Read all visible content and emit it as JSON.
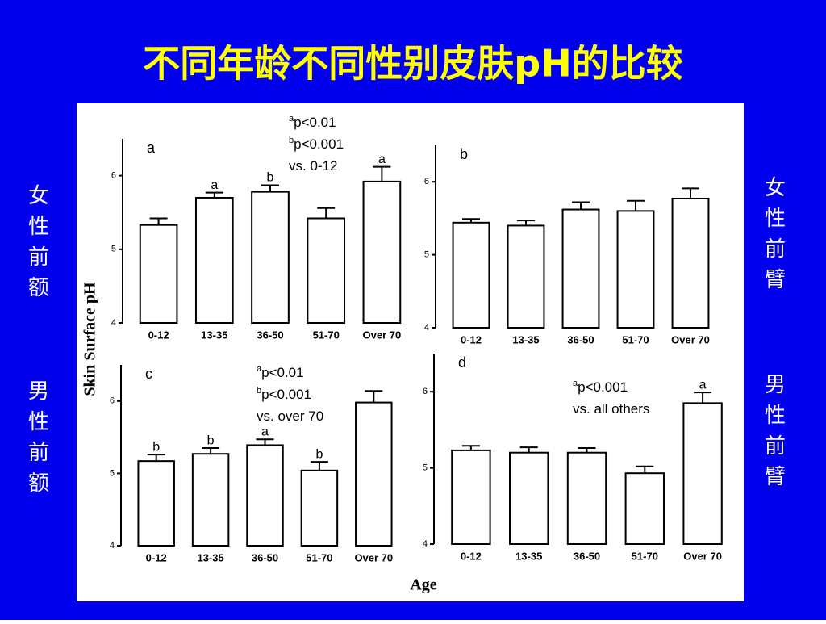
{
  "title": "不同年龄不同性别皮肤pH的比较",
  "left_labels": [
    "女性前额",
    "男性前额"
  ],
  "right_labels": [
    "女性前臂",
    "男性前臂"
  ],
  "y_axis_label": "Skin Surface pH",
  "x_axis_label": "Age",
  "chart_data": [
    {
      "type": "bar",
      "panel": "a",
      "categories": [
        "0-12",
        "13-35",
        "36-50",
        "51-70",
        "Over 70"
      ],
      "values": [
        5.33,
        5.7,
        5.78,
        5.42,
        5.92
      ],
      "errors": [
        0.09,
        0.07,
        0.09,
        0.14,
        0.2
      ],
      "bar_letters": [
        null,
        "a",
        "b",
        null,
        "a"
      ],
      "note": [
        "p<0.01",
        "p<0.001",
        "vs. 0-12"
      ],
      "note_superscripts": [
        "a",
        "b",
        null
      ],
      "ylim": [
        4,
        6.5
      ],
      "yticks": [
        4,
        5,
        6
      ],
      "color": "#ffffff"
    },
    {
      "type": "bar",
      "panel": "b",
      "categories": [
        "0-12",
        "13-35",
        "36-50",
        "51-70",
        "Over 70"
      ],
      "values": [
        5.44,
        5.4,
        5.62,
        5.6,
        5.77
      ],
      "errors": [
        0.05,
        0.07,
        0.1,
        0.14,
        0.14
      ],
      "ylim": [
        4,
        6.5
      ],
      "yticks": [
        4,
        5,
        6
      ],
      "color": "#ffffff"
    },
    {
      "type": "bar",
      "panel": "c",
      "categories": [
        "0-12",
        "13-35",
        "36-50",
        "51-70",
        "Over 70"
      ],
      "values": [
        5.17,
        5.27,
        5.39,
        5.04,
        5.98
      ],
      "errors": [
        0.09,
        0.08,
        0.08,
        0.12,
        0.16
      ],
      "bar_letters": [
        "b",
        "b",
        "a",
        "b",
        null
      ],
      "note": [
        "p<0.01",
        "p<0.001",
        "vs. over 70"
      ],
      "note_superscripts": [
        "a",
        "b",
        null
      ],
      "ylim": [
        4,
        6.5
      ],
      "yticks": [
        4,
        5,
        6
      ],
      "color": "#ffffff"
    },
    {
      "type": "bar",
      "panel": "d",
      "categories": [
        "0-12",
        "13-35",
        "36-50",
        "51-70",
        "Over 70"
      ],
      "values": [
        5.23,
        5.2,
        5.2,
        4.93,
        5.85
      ],
      "errors": [
        0.06,
        0.07,
        0.06,
        0.09,
        0.14
      ],
      "bar_letters": [
        null,
        null,
        null,
        null,
        "a"
      ],
      "note": [
        "p<0.001",
        "vs. all others"
      ],
      "note_superscripts": [
        "a",
        null
      ],
      "ylim": [
        4,
        6.5
      ],
      "yticks": [
        4,
        5,
        6
      ],
      "color": "#ffffff"
    }
  ]
}
